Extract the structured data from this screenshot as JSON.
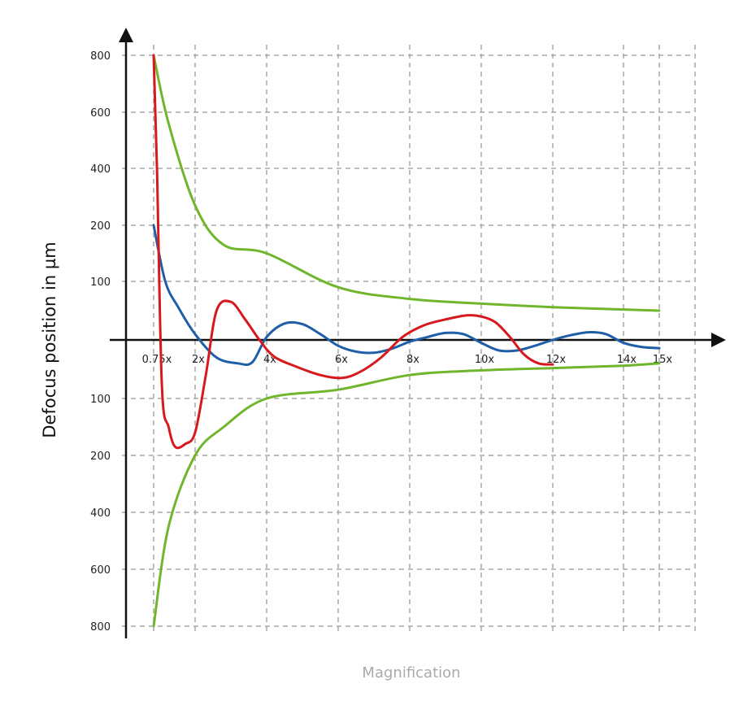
{
  "chart_data": {
    "type": "line",
    "title": "",
    "xlabel": "Magnification",
    "ylabel": "Defocus position in µm",
    "x_tick_labels": [
      "0.75x",
      "2x",
      "4x",
      "6x",
      "8x",
      "10x",
      "12x",
      "14x",
      "15x"
    ],
    "y_tick_labels_upper": [
      "800",
      "600",
      "400",
      "200",
      "100"
    ],
    "y_tick_labels_lower": [
      "100",
      "200",
      "400",
      "600",
      "800"
    ],
    "grid": true,
    "legend": "none",
    "series": [
      {
        "color": "#70b62c",
        "x": [
          0.75,
          1.2,
          2,
          2.8,
          4,
          6,
          8,
          10,
          12,
          14,
          15
        ],
        "y": [
          800,
          560,
          270,
          165,
          150,
          90,
          70,
          62,
          56,
          52,
          50
        ]
      },
      {
        "color": "#70b62c",
        "x": [
          0.75,
          1.2,
          2,
          2.8,
          4,
          6,
          8,
          10,
          12,
          14,
          15
        ],
        "y": [
          -800,
          -450,
          -200,
          -150,
          -100,
          -85,
          -60,
          -52,
          -48,
          -44,
          -40
        ]
      },
      {
        "color": "#1f5fa8",
        "x": [
          0.75,
          1.1,
          1.5,
          2,
          2.6,
          3.2,
          3.6,
          4,
          4.5,
          5,
          5.5,
          6,
          6.5,
          7,
          7.5,
          8,
          8.5,
          9,
          9.5,
          10,
          10.5,
          11,
          11.5,
          12,
          12.5,
          13,
          13.5,
          14,
          14.5,
          15
        ],
        "y": [
          200,
          100,
          55,
          10,
          -30,
          -40,
          -38,
          5,
          28,
          27,
          10,
          -10,
          -20,
          -22,
          -15,
          -3,
          5,
          12,
          10,
          -5,
          -18,
          -18,
          -10,
          0,
          8,
          13,
          10,
          -5,
          -12,
          -14
        ]
      },
      {
        "color": "#d7191e",
        "x": [
          0.75,
          0.85,
          1.0,
          1.2,
          1.4,
          1.7,
          2.0,
          2.3,
          2.6,
          3.0,
          3.4,
          3.8,
          4.2,
          4.8,
          5.5,
          6.1,
          6.6,
          7.2,
          7.8,
          8.4,
          9.0,
          9.6,
          10.0,
          10.4,
          10.8,
          11.2,
          11.6,
          12.0
        ],
        "y": [
          800,
          400,
          -80,
          -150,
          -185,
          -180,
          -160,
          -60,
          50,
          65,
          35,
          0,
          -28,
          -45,
          -60,
          -65,
          -55,
          -30,
          5,
          25,
          35,
          42,
          40,
          30,
          5,
          -25,
          -40,
          -42
        ]
      }
    ]
  }
}
